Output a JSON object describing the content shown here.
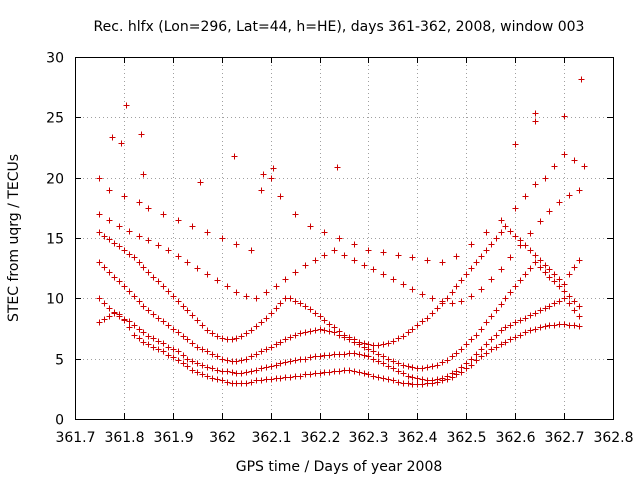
{
  "chart_data": {
    "type": "scatter",
    "title": "Rec. hlfx (Lon=296, Lat=44, h=HE), days 361-362, 2008, window 003",
    "xlabel": "GPS time / Days of year 2008",
    "ylabel": "STEC from uqrg / TECUs",
    "xlim": [
      361.7,
      362.8
    ],
    "ylim": [
      0,
      30
    ],
    "x_ticks": [
      "361.7",
      "361.8",
      "361.9",
      "362",
      "362.1",
      "362.2",
      "362.3",
      "362.4",
      "362.5",
      "362.6",
      "362.7",
      "362.8"
    ],
    "y_ticks": [
      "0",
      "5",
      "10",
      "15",
      "20",
      "25",
      "30"
    ],
    "x_tick_values": [
      361.7,
      361.8,
      361.9,
      362.0,
      362.1,
      362.2,
      362.3,
      362.4,
      362.5,
      362.6,
      362.7,
      362.8
    ],
    "y_tick_values": [
      0,
      5,
      10,
      15,
      20,
      25,
      30
    ],
    "grid": true,
    "marker": "plus",
    "color": "#cc0000",
    "series": [
      {
        "x": [
          361.75,
          361.76,
          361.77,
          361.78,
          361.79,
          361.8,
          361.81,
          361.82,
          361.83,
          361.84,
          361.85,
          361.86,
          361.87,
          361.88,
          361.89,
          361.9,
          361.91,
          361.92,
          361.93,
          361.94,
          361.95,
          361.96,
          361.97,
          361.98,
          361.99,
          362.0,
          362.01,
          362.02,
          362.03,
          362.04,
          362.05,
          362.06,
          362.07,
          362.08,
          362.09,
          362.1,
          362.11,
          362.12,
          362.13,
          362.14,
          362.15,
          362.16,
          362.17,
          362.18,
          362.19,
          362.2,
          362.21,
          362.22,
          362.23,
          362.24,
          362.25,
          362.26,
          362.27,
          362.28,
          362.29,
          362.3,
          362.31,
          362.32,
          362.33,
          362.34,
          362.35,
          362.36,
          362.37,
          362.38,
          362.39,
          362.4,
          362.41,
          362.42,
          362.43,
          362.44,
          362.45,
          362.46,
          362.47,
          362.48,
          362.49,
          362.5,
          362.51,
          362.52,
          362.53,
          362.54,
          362.55,
          362.56,
          362.57,
          362.58,
          362.59,
          362.6,
          362.61,
          362.62,
          362.63,
          362.64,
          362.65,
          362.66,
          362.67,
          362.68,
          362.69,
          362.7,
          362.71,
          362.72,
          362.73
        ],
        "y": [
          8.0,
          8.3,
          8.5,
          8.9,
          8.7,
          8.2,
          7.6,
          7.0,
          6.7,
          6.4,
          6.2,
          6.0,
          5.8,
          5.6,
          5.3,
          5.1,
          4.9,
          4.6,
          4.4,
          4.1,
          3.9,
          3.7,
          3.6,
          3.4,
          3.3,
          3.2,
          3.1,
          3.0,
          3.0,
          3.0,
          3.0,
          3.1,
          3.2,
          3.2,
          3.3,
          3.3,
          3.4,
          3.4,
          3.5,
          3.5,
          3.6,
          3.6,
          3.7,
          3.7,
          3.8,
          3.8,
          3.9,
          3.9,
          4.0,
          4.0,
          4.1,
          4.1,
          4.0,
          3.9,
          3.8,
          3.7,
          3.6,
          3.5,
          3.4,
          3.3,
          3.2,
          3.1,
          3.0,
          3.0,
          2.9,
          2.9,
          2.9,
          3.0,
          3.0,
          3.1,
          3.2,
          3.3,
          3.5,
          3.7,
          3.9,
          4.2,
          4.5,
          4.9,
          5.2,
          5.5,
          5.8,
          6.0,
          6.2,
          6.4,
          6.6,
          6.8,
          7.0,
          7.2,
          7.4,
          7.5,
          7.6,
          7.7,
          7.8,
          7.8,
          7.9,
          7.9,
          7.8,
          7.8,
          7.7
        ]
      },
      {
        "x": [
          361.75,
          361.76,
          361.77,
          361.78,
          361.79,
          361.8,
          361.81,
          361.82,
          361.83,
          361.84,
          361.85,
          361.86,
          361.87,
          361.88,
          361.89,
          361.9,
          361.91,
          361.92,
          361.93,
          361.94,
          361.95,
          361.96,
          361.97,
          361.98,
          361.99,
          362.0,
          362.01,
          362.02,
          362.03,
          362.04,
          362.05,
          362.06,
          362.07,
          362.08,
          362.09,
          362.1,
          362.11,
          362.12,
          362.13,
          362.14,
          362.15,
          362.16,
          362.17,
          362.18,
          362.19,
          362.2,
          362.21,
          362.22,
          362.23,
          362.24,
          362.25,
          362.26,
          362.27,
          362.28,
          362.29,
          362.3,
          362.31,
          362.32,
          362.33,
          362.34,
          362.35,
          362.36,
          362.37,
          362.38,
          362.39,
          362.4,
          362.41,
          362.42,
          362.43,
          362.44,
          362.45,
          362.46,
          362.47,
          362.48,
          362.49,
          362.5,
          362.51,
          362.52,
          362.53,
          362.54,
          362.55,
          362.56,
          362.57,
          362.58,
          362.59,
          362.6,
          362.61,
          362.62,
          362.63,
          362.64,
          362.65,
          362.66,
          362.67,
          362.68,
          362.69,
          362.7,
          362.71,
          362.72,
          362.73
        ],
        "y": [
          10.0,
          9.6,
          9.2,
          8.8,
          8.5,
          8.3,
          8.1,
          7.8,
          7.5,
          7.2,
          6.9,
          6.7,
          6.5,
          6.3,
          6.0,
          5.8,
          5.6,
          5.3,
          5.0,
          4.8,
          4.6,
          4.5,
          4.3,
          4.2,
          4.1,
          4.0,
          4.0,
          3.9,
          3.8,
          3.8,
          3.9,
          4.0,
          4.1,
          4.2,
          4.3,
          4.4,
          4.5,
          4.6,
          4.7,
          4.8,
          4.9,
          5.0,
          5.0,
          5.1,
          5.2,
          5.2,
          5.3,
          5.3,
          5.4,
          5.4,
          5.4,
          5.5,
          5.5,
          5.4,
          5.3,
          5.2,
          5.0,
          4.8,
          4.6,
          4.4,
          4.2,
          4.0,
          3.8,
          3.6,
          3.5,
          3.4,
          3.3,
          3.2,
          3.2,
          3.3,
          3.4,
          3.6,
          3.8,
          4.0,
          4.3,
          4.6,
          5.0,
          5.4,
          5.8,
          6.2,
          6.6,
          7.0,
          7.4,
          7.6,
          7.8,
          8.0,
          8.2,
          8.4,
          8.6,
          8.8,
          9.0,
          9.2,
          9.4,
          9.6,
          9.8,
          10.0,
          9.6,
          9.0,
          8.5
        ]
      },
      {
        "x": [
          361.75,
          361.76,
          361.77,
          361.78,
          361.79,
          361.8,
          361.81,
          361.82,
          361.83,
          361.84,
          361.85,
          361.86,
          361.87,
          361.88,
          361.89,
          361.9,
          361.91,
          361.92,
          361.93,
          361.94,
          361.95,
          361.96,
          361.97,
          361.98,
          361.99,
          362.0,
          362.01,
          362.02,
          362.03,
          362.04,
          362.05,
          362.06,
          362.07,
          362.08,
          362.09,
          362.1,
          362.11,
          362.12,
          362.13,
          362.14,
          362.15,
          362.16,
          362.17,
          362.18,
          362.19,
          362.2,
          362.21,
          362.22,
          362.23,
          362.24,
          362.25,
          362.26,
          362.27,
          362.28,
          362.29,
          362.3,
          362.31,
          362.32,
          362.33,
          362.34,
          362.35,
          362.36,
          362.37,
          362.38,
          362.39,
          362.4,
          362.41,
          362.42,
          362.43,
          362.44,
          362.45,
          362.46,
          362.47,
          362.48,
          362.49,
          362.5,
          362.51,
          362.52,
          362.53,
          362.54,
          362.55,
          362.56,
          362.57,
          362.58,
          362.59,
          362.6,
          362.61,
          362.62,
          362.63,
          362.64,
          362.65,
          362.66,
          362.67,
          362.68,
          362.69,
          362.7,
          362.71,
          362.72,
          362.73
        ],
        "y": [
          13.0,
          12.6,
          12.2,
          11.8,
          11.4,
          11.0,
          10.6,
          10.2,
          9.8,
          9.4,
          9.0,
          8.7,
          8.4,
          8.1,
          7.8,
          7.5,
          7.2,
          6.9,
          6.6,
          6.3,
          6.0,
          5.8,
          5.6,
          5.4,
          5.2,
          5.0,
          4.9,
          4.8,
          4.8,
          4.9,
          5.0,
          5.2,
          5.4,
          5.6,
          5.8,
          6.0,
          6.2,
          6.4,
          6.6,
          6.8,
          7.0,
          7.1,
          7.2,
          7.3,
          7.4,
          7.5,
          7.4,
          7.3,
          7.2,
          7.0,
          6.8,
          6.6,
          6.4,
          6.2,
          6.0,
          5.8,
          5.6,
          5.4,
          5.2,
          5.0,
          4.8,
          4.6,
          4.5,
          4.4,
          4.3,
          4.2,
          4.2,
          4.3,
          4.4,
          4.5,
          4.7,
          4.9,
          5.2,
          5.5,
          5.8,
          6.2,
          6.6,
          7.0,
          7.5,
          8.0,
          8.5,
          9.0,
          9.5,
          10.0,
          10.5,
          11.0,
          11.5,
          12.0,
          12.5,
          13.0,
          12.6,
          12.2,
          11.8,
          11.4,
          11.0,
          10.6,
          10.2,
          9.8,
          9.4
        ]
      },
      {
        "x": [
          361.75,
          361.76,
          361.77,
          361.78,
          361.79,
          361.8,
          361.81,
          361.82,
          361.83,
          361.84,
          361.85,
          361.86,
          361.87,
          361.88,
          361.89,
          361.9,
          361.91,
          361.92,
          361.93,
          361.94,
          361.95,
          361.96,
          361.97,
          361.98,
          361.99,
          362.0,
          362.01,
          362.02,
          362.03,
          362.04,
          362.05,
          362.06,
          362.07,
          362.08,
          362.09,
          362.1,
          362.11,
          362.12,
          362.13,
          362.14,
          362.15,
          362.16,
          362.17,
          362.18,
          362.19,
          362.2,
          362.21,
          362.22,
          362.23,
          362.24,
          362.25,
          362.26,
          362.27,
          362.28,
          362.29,
          362.3,
          362.31,
          362.32,
          362.33,
          362.34,
          362.35,
          362.36,
          362.37,
          362.38,
          362.39,
          362.4,
          362.41,
          362.42,
          362.43,
          362.44,
          362.45,
          362.46,
          362.47,
          362.48,
          362.49,
          362.5,
          362.51,
          362.52,
          362.53,
          362.54,
          362.55,
          362.56,
          362.57,
          362.58,
          362.59,
          362.6,
          362.61,
          362.62,
          362.63,
          362.64,
          362.65,
          362.66,
          362.67,
          362.68,
          362.69,
          362.7,
          362.71,
          362.72,
          362.73
        ],
        "y": [
          15.5,
          15.2,
          14.9,
          14.6,
          14.3,
          14.0,
          13.7,
          13.4,
          13.0,
          12.6,
          12.2,
          11.8,
          11.4,
          11.0,
          10.6,
          10.2,
          9.8,
          9.4,
          9.0,
          8.6,
          8.2,
          7.8,
          7.4,
          7.1,
          6.9,
          6.7,
          6.6,
          6.6,
          6.7,
          6.9,
          7.1,
          7.4,
          7.7,
          8.0,
          8.4,
          8.8,
          9.2,
          9.6,
          10.0,
          10.0,
          9.8,
          9.6,
          9.4,
          9.1,
          8.8,
          8.5,
          8.2,
          7.9,
          7.6,
          7.3,
          7.0,
          6.8,
          6.6,
          6.4,
          6.3,
          6.2,
          6.1,
          6.1,
          6.2,
          6.3,
          6.5,
          6.7,
          6.9,
          7.2,
          7.5,
          7.8,
          8.1,
          8.4,
          8.8,
          9.2,
          9.6,
          10.0,
          10.5,
          11.0,
          11.5,
          12.0,
          12.5,
          13.0,
          13.5,
          14.0,
          14.5,
          15.0,
          15.5,
          16.0,
          15.6,
          15.2,
          14.8,
          14.4,
          14.0,
          13.6,
          13.2,
          12.8,
          12.4,
          12.0,
          11.6,
          11.2,
          12.0,
          12.6,
          13.2
        ]
      },
      {
        "x": [
          361.75,
          361.77,
          361.79,
          361.81,
          361.83,
          361.85,
          361.87,
          361.89,
          361.91,
          361.93,
          361.95,
          361.97,
          361.99,
          362.01,
          362.03,
          362.05,
          362.07,
          362.09,
          362.11,
          362.13,
          362.15,
          362.17,
          362.19,
          362.21,
          362.23,
          362.25,
          362.27,
          362.29,
          362.31,
          362.33,
          362.35,
          362.37,
          362.39,
          362.41,
          362.43,
          362.45,
          362.47,
          362.49,
          362.51,
          362.53,
          362.55,
          362.57,
          362.59,
          362.61,
          362.63,
          362.65,
          362.67,
          362.69,
          362.71,
          362.73
        ],
        "y": [
          17.0,
          16.5,
          16.0,
          15.6,
          15.2,
          14.8,
          14.4,
          14.0,
          13.5,
          13.0,
          12.5,
          12.0,
          11.5,
          11.0,
          10.5,
          10.2,
          10.0,
          10.5,
          11.0,
          11.6,
          12.2,
          12.8,
          13.2,
          13.6,
          14.0,
          13.6,
          13.2,
          12.8,
          12.4,
          12.0,
          11.6,
          11.2,
          10.8,
          10.4,
          10.0,
          9.8,
          9.6,
          9.8,
          10.2,
          10.8,
          11.6,
          12.4,
          13.4,
          14.4,
          15.4,
          16.4,
          17.2,
          18.0,
          18.6,
          19.0
        ]
      },
      {
        "x": [
          361.75,
          361.77,
          361.8,
          361.83,
          361.85,
          361.88,
          361.91,
          361.94,
          361.97,
          362.0,
          362.03,
          362.06,
          362.08,
          362.1,
          362.12,
          362.15,
          362.18,
          362.21,
          362.24,
          362.27,
          362.3,
          362.33,
          362.36,
          362.39,
          362.42,
          362.45,
          362.48,
          362.51,
          362.54,
          362.57,
          362.6,
          362.62,
          362.64,
          362.66,
          362.68,
          362.7,
          362.72,
          362.74
        ],
        "y": [
          20.0,
          19.0,
          18.5,
          18.0,
          17.5,
          17.0,
          16.5,
          16.0,
          15.5,
          15.0,
          14.5,
          14.0,
          19.0,
          20.0,
          18.5,
          17.0,
          16.0,
          15.5,
          15.0,
          14.5,
          14.0,
          13.8,
          13.6,
          13.4,
          13.2,
          13.0,
          13.5,
          14.5,
          15.5,
          16.5,
          17.5,
          18.5,
          19.5,
          20.0,
          21.0,
          22.0,
          21.5,
          21.0
        ]
      },
      {
        "x": [
          361.775,
          361.795,
          361.805,
          361.835,
          361.84,
          361.955,
          362.025,
          362.085,
          362.105,
          362.235,
          362.6,
          362.64,
          362.64,
          362.7,
          362.735
        ],
        "y": [
          23.4,
          22.9,
          26.0,
          23.6,
          20.3,
          19.6,
          21.8,
          20.3,
          20.8,
          20.9,
          22.8,
          25.4,
          24.7,
          25.1,
          28.2
        ]
      }
    ]
  }
}
